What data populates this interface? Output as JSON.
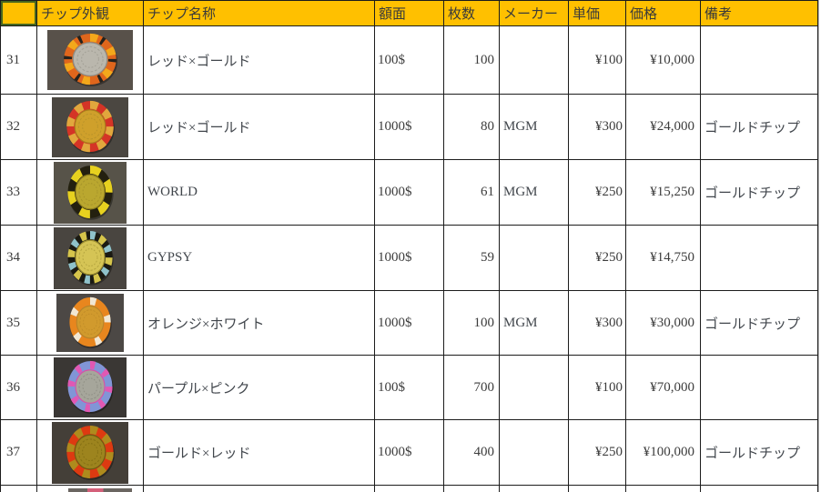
{
  "colors": {
    "header_bg": "#FFC000",
    "selection_border": "#47661f",
    "grid": "#1c1c1c",
    "text": "#41464c"
  },
  "table": {
    "headers": [
      {
        "label": ""
      },
      {
        "label": "チップ外観"
      },
      {
        "label": "チップ名称"
      },
      {
        "label": "額面"
      },
      {
        "label": "枚数"
      },
      {
        "label": "メーカー"
      },
      {
        "label": "単価"
      },
      {
        "label": "価格"
      },
      {
        "label": "備考"
      }
    ],
    "rows": [
      {
        "no": "31",
        "name": "レッド×ゴールド",
        "face": "100$",
        "count": "100",
        "maker": "",
        "unit": "¥100",
        "price": "¥10,000",
        "note": "",
        "chip": {
          "icon": "orange-gold-silver-chip",
          "photo_bg": "#58514a",
          "ring": "#e0661c",
          "spots": [
            {
              "color": "#f3a81b",
              "count": 6,
              "frac": 0.32,
              "rot": 0
            },
            {
              "color": "#26221c",
              "count": 6,
              "frac": 0.13,
              "rot": 0.085
            }
          ],
          "center": "#bab7ad",
          "center_ring": "#8f8c83",
          "detail": "#a3a096"
        }
      },
      {
        "no": "32",
        "name": "レッド×ゴールド",
        "face": "1000$",
        "count": "80",
        "maker": "MGM",
        "unit": "¥300",
        "price": "¥24,000",
        "note": "ゴールドチップ",
        "chip": {
          "icon": "red-gold-chip",
          "photo_bg": "#4b4741",
          "ring": "#d43426",
          "spots": [
            {
              "color": "#e1a73d",
              "count": 8,
              "frac": 0.5,
              "rot": 0
            }
          ],
          "center": "#cfa02b",
          "center_ring": "#a87e1c",
          "detail": "#b8922a"
        }
      },
      {
        "no": "33",
        "name": "WORLD",
        "face": "1000$",
        "count": "61",
        "maker": "MGM",
        "unit": "¥250",
        "price": "¥15,250",
        "note": "ゴールドチップ",
        "chip": {
          "icon": "black-yellow-gold-chip",
          "photo_bg": "#575349",
          "ring": "#23200f",
          "spots": [
            {
              "color": "#e7d11f",
              "count": 6,
              "frac": 0.52,
              "rot": 0
            }
          ],
          "center": "#baa72f",
          "center_ring": "#8f7f1d",
          "detail": "#a6942a"
        }
      },
      {
        "no": "34",
        "name": "GYPSY",
        "face": "1000$",
        "count": "59",
        "maker": "",
        "unit": "¥250",
        "price": "¥14,750",
        "note": "",
        "chip": {
          "icon": "black-blue-yellow-chip",
          "photo_bg": "#494540",
          "ring": "#1b1a12",
          "spots": [
            {
              "color": "#8fc2ca",
              "count": 6,
              "frac": 0.26,
              "rot": 0
            },
            {
              "color": "#d6c54b",
              "count": 6,
              "frac": 0.3,
              "rot": 0.083
            }
          ],
          "center": "#d5c455",
          "center_ring": "#9d8f30",
          "detail": "#b3a43e"
        }
      },
      {
        "no": "35",
        "name": "オレンジ×ホワイト",
        "face": "1000$",
        "count": "100",
        "maker": "MGM",
        "unit": "¥300",
        "price": "¥30,000",
        "note": "ゴールドチップ",
        "chip": {
          "icon": "orange-white-chip",
          "photo_bg": "#4c4845",
          "ring": "#e8861e",
          "spots": [
            {
              "color": "#f1e7d3",
              "count": 5,
              "frac": 0.26,
              "rot": 0
            }
          ],
          "center": "#d19a2d",
          "center_ring": "#b5832a",
          "detail": "#c08c28"
        }
      },
      {
        "no": "36",
        "name": "パープル×ピンク",
        "face": "100$",
        "count": "700",
        "maker": "",
        "unit": "¥100",
        "price": "¥70,000",
        "note": "",
        "chip": {
          "icon": "purple-pink-chip",
          "photo_bg": "#3a3734",
          "ring": "#8195d6",
          "spots": [
            {
              "color": "#e158b3",
              "count": 8,
              "frac": 0.32,
              "rot": 0
            }
          ],
          "center": "#a6a69b",
          "center_ring": "#d94fa6",
          "detail": "#8e8e84"
        }
      },
      {
        "no": "37",
        "name": "ゴールド×レッド",
        "face": "1000$",
        "count": "400",
        "maker": "",
        "unit": "¥250",
        "price": "¥100,000",
        "note": "ゴールドチップ",
        "chip": {
          "icon": "gold-red-chip",
          "photo_bg": "#443f38",
          "ring": "#dd3a11",
          "spots": [
            {
              "color": "#ae8b1d",
              "count": 8,
              "frac": 0.46,
              "rot": 0
            }
          ],
          "center": "#9d841e",
          "center_ring": "#6f5d12",
          "detail": "#857014"
        }
      }
    ]
  }
}
